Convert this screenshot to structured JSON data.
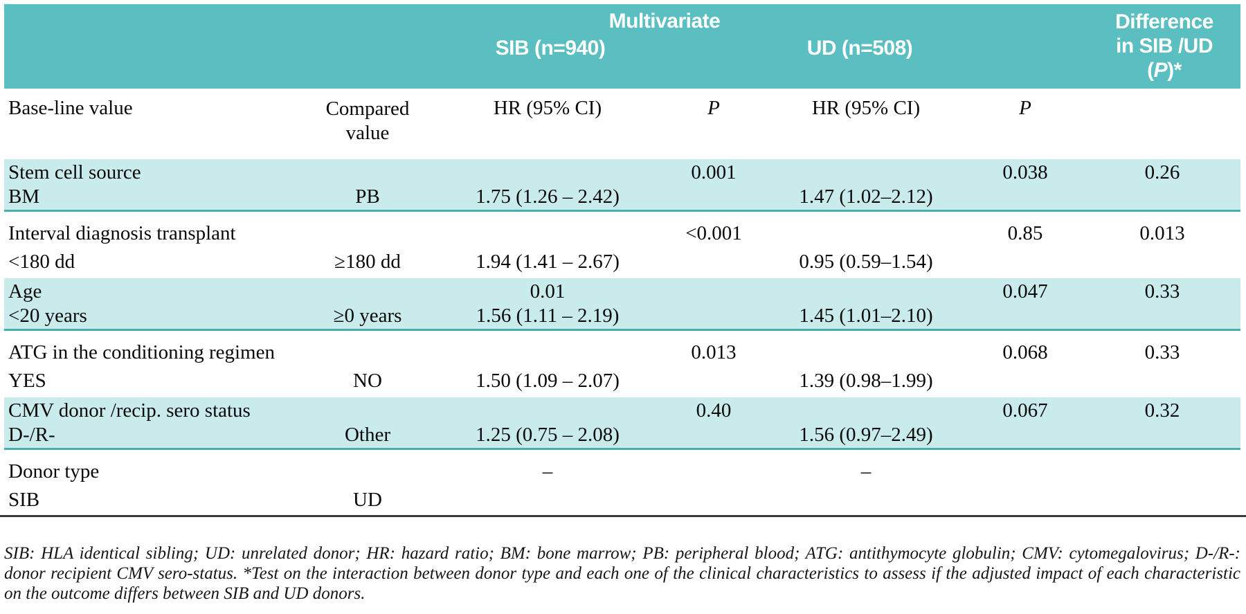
{
  "header": {
    "group_title": "Multivariate",
    "sib_col": "SIB (n=940)",
    "ud_col": "UD (n=508)",
    "diff_line1": "Difference",
    "diff_line2": "in SIB /UD",
    "diff_line3_open": "(",
    "diff_line3_p": "P",
    "diff_line3_close": ")*"
  },
  "columns": {
    "baseline": "Base-line value",
    "compared": "Compared value",
    "hr_sib": "HR (95% CI)",
    "p_sib": "P",
    "hr_ud": "HR (95% CI)",
    "p_ud": "P"
  },
  "rows": [
    {
      "line1": [
        "Stem cell source",
        "",
        "",
        "0.001",
        "",
        "0.038",
        "0.26"
      ],
      "line2": [
        "BM",
        "PB",
        "1.75 (1.26 – 2.42)",
        "",
        "1.47 (1.02–2.12)",
        "",
        ""
      ]
    },
    {
      "line1": [
        "Interval diagnosis transplant",
        "",
        "",
        "<0.001",
        "",
        "0.85",
        "0.013"
      ],
      "line2": [
        "<180 dd",
        "≥180 dd",
        "1.94 (1.41 – 2.67)",
        "",
        "0.95 (0.59–1.54)",
        "",
        ""
      ]
    },
    {
      "line1": [
        "Age",
        "",
        "0.01",
        "",
        "",
        "0.047",
        "0.33"
      ],
      "line2": [
        "<20 years",
        "≥0 years",
        "1.56 (1.11 – 2.19)",
        "",
        "1.45 (1.01–2.10)",
        "",
        ""
      ]
    },
    {
      "line1": [
        "ATG in the conditioning regimen",
        "",
        "",
        "0.013",
        "",
        "0.068",
        "0.33"
      ],
      "line2": [
        "YES",
        "NO",
        "1.50 (1.09 – 2.07)",
        "",
        "1.39 (0.98–1.99)",
        "",
        ""
      ]
    },
    {
      "line1": [
        "CMV donor /recip. sero status",
        "",
        "",
        "0.40",
        "",
        "0.067",
        "0.32"
      ],
      "line2": [
        "D-/R-",
        "Other",
        "1.25 (0.75 – 2.08)",
        "",
        "1.56 (0.97–2.49)",
        "",
        ""
      ]
    },
    {
      "line1": [
        "Donor type",
        "",
        "–",
        "",
        "–",
        "",
        ""
      ],
      "line2": [
        "SIB",
        "UD",
        "",
        "",
        "",
        "",
        ""
      ]
    }
  ],
  "footnote": "SIB: HLA identical sibling; UD: unrelated donor; HR: hazard ratio; BM: bone marrow; PB: peripheral blood; ATG: antithymocyte globulin; CMV: cytomegalovirus; D-/R-: donor recipient CMV sero-status. *Test on the interaction between donor type and each one of the clinical characteristics to assess if the adjusted impact of each characteristic on the outcome differs between SIB and UD donors.",
  "colors": {
    "banner_teal": "#5bbfc1",
    "row_teal": "#c9ebeb",
    "row_separator": "#4aacae",
    "bottom_rule": "#3a3a3a"
  }
}
